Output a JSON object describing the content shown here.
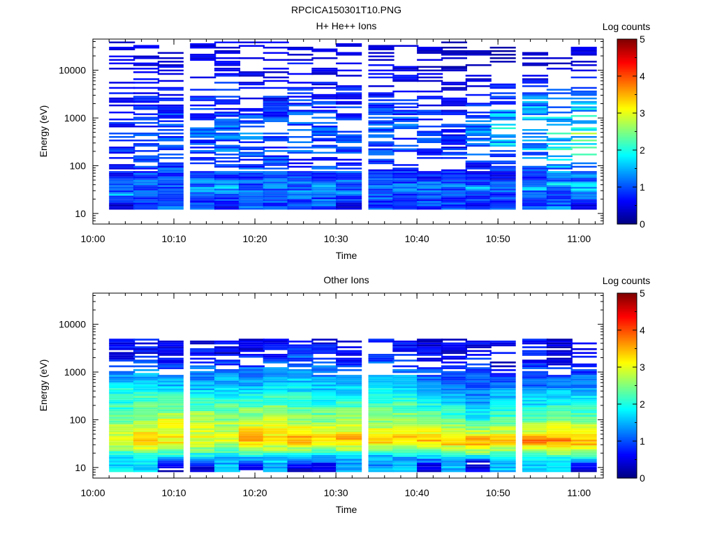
{
  "figure_title": "RPCICA150301T10.PNG",
  "colors": {
    "colormap": [
      "#00007f",
      "#0000ff",
      "#007fff",
      "#00ffff",
      "#7fff7f",
      "#ffff00",
      "#ff7f00",
      "#ff0000",
      "#7f0000"
    ],
    "empty": "#ffffff"
  },
  "chart_data": [
    {
      "type": "heatmap",
      "title": "H+ He++ Ions",
      "xlabel": "Time",
      "ylabel": "Energy (eV)",
      "y_scale": "log",
      "ylim": [
        6,
        45000
      ],
      "xlim": [
        "10:00",
        "11:03"
      ],
      "x_ticks": [
        "10:00",
        "10:10",
        "10:20",
        "10:30",
        "10:40",
        "10:50",
        "11:00"
      ],
      "y_ticks": [
        "10",
        "100",
        "1000",
        "10000"
      ],
      "colorbar": {
        "label": "Log counts",
        "min": 0,
        "max": 5,
        "ticks": [
          "0",
          "1",
          "2",
          "3",
          "4",
          "5"
        ]
      },
      "time_bins_start": [
        "10:02",
        "10:05",
        "10:08",
        "10:12",
        "10:15",
        "10:18",
        "10:21",
        "10:24",
        "10:27",
        "10:30",
        "10:34",
        "10:37",
        "10:40",
        "10:43",
        "10:46",
        "10:49",
        "10:53",
        "10:56",
        "10:59"
      ],
      "bin_minutes": 3.2,
      "energy_min_eV": 12,
      "energy_max_eV": 40000,
      "n_energy_bins": 96,
      "profile_eV": [
        [
          [
            15,
            0.4
          ],
          [
            25,
            1.4
          ],
          [
            35,
            1.0
          ],
          [
            55,
            0.7
          ],
          [
            600,
            0.8
          ],
          [
            10000,
            0.5
          ]
        ],
        [
          [
            25,
            1.0
          ],
          [
            35,
            1.2
          ],
          [
            55,
            0.9
          ],
          [
            600,
            0.9
          ],
          [
            10000,
            0.5
          ]
        ],
        [
          [
            25,
            1.0
          ],
          [
            35,
            1.2
          ],
          [
            55,
            0.9
          ],
          [
            600,
            1.0
          ],
          [
            10000,
            0.5
          ]
        ],
        [
          [
            25,
            1.0
          ],
          [
            35,
            1.3
          ],
          [
            55,
            1.0
          ],
          [
            600,
            1.0
          ],
          [
            10000,
            0.5
          ]
        ],
        [
          [
            12,
            0.4
          ],
          [
            25,
            1.1
          ],
          [
            35,
            1.4
          ],
          [
            55,
            1.0
          ],
          [
            600,
            1.1
          ],
          [
            10000,
            0.6
          ]
        ],
        [
          [
            25,
            1.0
          ],
          [
            35,
            1.2
          ],
          [
            55,
            0.9
          ],
          [
            600,
            1.1
          ],
          [
            10000,
            0.5
          ]
        ],
        [
          [
            25,
            1.0
          ],
          [
            35,
            1.2
          ],
          [
            55,
            0.9
          ],
          [
            600,
            1.0
          ],
          [
            10000,
            0.5
          ]
        ],
        [
          [
            25,
            1.0
          ],
          [
            35,
            1.3
          ],
          [
            55,
            0.9
          ],
          [
            600,
            1.0
          ],
          [
            10000,
            0.6
          ]
        ],
        [
          [
            25,
            1.0
          ],
          [
            35,
            1.3
          ],
          [
            55,
            0.9
          ],
          [
            600,
            1.0
          ],
          [
            10000,
            0.5
          ]
        ],
        [
          [
            12,
            0.4
          ],
          [
            25,
            1.0
          ],
          [
            35,
            1.3
          ],
          [
            55,
            0.9
          ],
          [
            600,
            0.9
          ],
          [
            10000,
            0.5
          ]
        ],
        [
          [
            25,
            1.0
          ],
          [
            35,
            1.2
          ],
          [
            55,
            0.9
          ],
          [
            600,
            1.0
          ],
          [
            10000,
            0.5
          ]
        ],
        [
          [
            25,
            0.8
          ],
          [
            35,
            1.2
          ],
          [
            55,
            0.8
          ],
          [
            600,
            1.0
          ],
          [
            10000,
            0.5
          ]
        ],
        [
          [
            25,
            0.9
          ],
          [
            35,
            1.3
          ],
          [
            55,
            0.8
          ],
          [
            600,
            0.9
          ],
          [
            10000,
            0.4
          ]
        ],
        [
          [
            25,
            0.9
          ],
          [
            35,
            1.3
          ],
          [
            55,
            0.7
          ],
          [
            600,
            0.8
          ],
          [
            10000,
            0.3
          ]
        ],
        [
          [
            25,
            0.8
          ],
          [
            35,
            1.3
          ],
          [
            55,
            0.6
          ],
          [
            600,
            1.2
          ],
          [
            10000,
            0.3
          ]
        ],
        [
          [
            25,
            0.9
          ],
          [
            35,
            1.4
          ],
          [
            55,
            0.6
          ],
          [
            600,
            1.8
          ],
          [
            10000,
            0.2
          ]
        ],
        [
          [
            25,
            1.0
          ],
          [
            35,
            1.5
          ],
          [
            55,
            0.9
          ],
          [
            600,
            1.9
          ],
          [
            10000,
            0.3
          ]
        ],
        [
          [
            25,
            1.1
          ],
          [
            35,
            1.6
          ],
          [
            55,
            1.1
          ],
          [
            600,
            2.0
          ],
          [
            10000,
            0.4
          ]
        ],
        [
          [
            12,
            0.4
          ],
          [
            25,
            1.2
          ],
          [
            35,
            1.7
          ],
          [
            55,
            1.2
          ],
          [
            600,
            2.1
          ],
          [
            10000,
            0.5
          ]
        ]
      ]
    },
    {
      "type": "heatmap",
      "title": "Other Ions",
      "xlabel": "Time",
      "ylabel": "Energy (eV)",
      "y_scale": "log",
      "ylim": [
        6,
        45000
      ],
      "xlim": [
        "10:00",
        "11:03"
      ],
      "x_ticks": [
        "10:00",
        "10:10",
        "10:20",
        "10:30",
        "10:40",
        "10:50",
        "11:00"
      ],
      "y_ticks": [
        "10",
        "100",
        "1000",
        "10000"
      ],
      "colorbar": {
        "label": "Log counts",
        "min": 0,
        "max": 5,
        "ticks": [
          "0",
          "1",
          "2",
          "3",
          "4",
          "5"
        ]
      },
      "time_bins_start": [
        "10:02",
        "10:05",
        "10:08",
        "10:12",
        "10:15",
        "10:18",
        "10:21",
        "10:24",
        "10:27",
        "10:30",
        "10:34",
        "10:37",
        "10:40",
        "10:43",
        "10:46",
        "10:49",
        "10:53",
        "10:56",
        "10:59"
      ],
      "bin_minutes": 3.2,
      "energy_min_eV": 8,
      "energy_max_eV": 5000,
      "n_energy_bins": 70,
      "profile_eV": [
        [
          [
            16,
            1.8
          ],
          [
            22,
            2.3
          ],
          [
            35,
            3.2
          ],
          [
            100,
            2.4
          ],
          [
            500,
            1.8
          ],
          [
            2000,
            0.6
          ]
        ],
        [
          [
            16,
            1.8
          ],
          [
            22,
            2.5
          ],
          [
            35,
            3.5
          ],
          [
            100,
            2.6
          ],
          [
            500,
            1.9
          ],
          [
            2500,
            0.6
          ]
        ],
        [
          [
            10,
            0.3
          ],
          [
            16,
            1.7
          ],
          [
            22,
            2.4
          ],
          [
            35,
            3.2
          ],
          [
            100,
            2.9
          ],
          [
            500,
            1.6
          ],
          [
            2500,
            0.5
          ]
        ],
        [
          [
            10,
            0.3
          ],
          [
            16,
            1.6
          ],
          [
            22,
            2.3
          ],
          [
            35,
            3.0
          ],
          [
            100,
            2.8
          ],
          [
            500,
            1.5
          ],
          [
            3500,
            0.5
          ]
        ],
        [
          [
            16,
            1.5
          ],
          [
            22,
            2.2
          ],
          [
            35,
            3.0
          ],
          [
            100,
            2.6
          ],
          [
            500,
            1.7
          ],
          [
            2500,
            0.5
          ]
        ],
        [
          [
            10,
            0.4
          ],
          [
            16,
            1.5
          ],
          [
            22,
            2.4
          ],
          [
            35,
            3.5
          ],
          [
            100,
            2.8
          ],
          [
            500,
            1.6
          ],
          [
            3000,
            0.5
          ]
        ],
        [
          [
            16,
            1.6
          ],
          [
            22,
            2.5
          ],
          [
            35,
            3.3
          ],
          [
            100,
            2.8
          ],
          [
            500,
            1.8
          ],
          [
            3500,
            0.5
          ]
        ],
        [
          [
            10,
            0.4
          ],
          [
            16,
            1.4
          ],
          [
            22,
            2.5
          ],
          [
            35,
            3.6
          ],
          [
            100,
            2.7
          ],
          [
            500,
            1.7
          ],
          [
            5000,
            0.6
          ]
        ],
        [
          [
            10,
            0.4
          ],
          [
            16,
            1.4
          ],
          [
            22,
            2.4
          ],
          [
            35,
            3.4
          ],
          [
            100,
            2.5
          ],
          [
            500,
            1.6
          ],
          [
            4000,
            0.6
          ]
        ],
        [
          [
            16,
            1.5
          ],
          [
            22,
            2.4
          ],
          [
            35,
            3.5
          ],
          [
            100,
            2.6
          ],
          [
            500,
            1.6
          ],
          [
            2500,
            0.5
          ]
        ],
        [
          [
            16,
            1.4
          ],
          [
            22,
            2.3
          ],
          [
            35,
            3.3
          ],
          [
            100,
            2.6
          ],
          [
            500,
            1.8
          ],
          [
            3500,
            0.6
          ]
        ],
        [
          [
            16,
            1.5
          ],
          [
            22,
            2.4
          ],
          [
            35,
            3.4
          ],
          [
            100,
            2.7
          ],
          [
            500,
            1.7
          ],
          [
            2500,
            0.6
          ]
        ],
        [
          [
            10,
            0.4
          ],
          [
            16,
            1.5
          ],
          [
            22,
            2.4
          ],
          [
            35,
            3.4
          ],
          [
            100,
            2.5
          ],
          [
            500,
            1.4
          ],
          [
            2000,
            0.5
          ]
        ],
        [
          [
            16,
            1.5
          ],
          [
            22,
            2.5
          ],
          [
            35,
            3.6
          ],
          [
            100,
            2.3
          ],
          [
            500,
            1.2
          ],
          [
            2000,
            0.5
          ]
        ],
        [
          [
            13,
            0.4
          ],
          [
            16,
            1.6
          ],
          [
            22,
            2.7
          ],
          [
            35,
            3.6
          ],
          [
            100,
            1.9
          ],
          [
            500,
            1.1
          ],
          [
            4500,
            0.5
          ]
        ],
        [
          [
            16,
            1.6
          ],
          [
            22,
            2.6
          ],
          [
            35,
            3.5
          ],
          [
            100,
            2.2
          ],
          [
            500,
            1.3
          ],
          [
            1500,
            0.5
          ]
        ],
        [
          [
            16,
            1.7
          ],
          [
            22,
            2.8
          ],
          [
            35,
            3.7
          ],
          [
            100,
            2.3
          ],
          [
            500,
            1.2
          ],
          [
            3000,
            0.6
          ]
        ],
        [
          [
            16,
            1.8
          ],
          [
            22,
            2.9
          ],
          [
            35,
            3.8
          ],
          [
            100,
            2.6
          ],
          [
            500,
            1.3
          ],
          [
            2000,
            0.5
          ]
        ],
        [
          [
            10,
            0.4
          ],
          [
            16,
            1.8
          ],
          [
            22,
            2.7
          ],
          [
            35,
            3.6
          ],
          [
            100,
            2.5
          ],
          [
            500,
            1.3
          ],
          [
            2200,
            0.5
          ]
        ]
      ]
    }
  ]
}
